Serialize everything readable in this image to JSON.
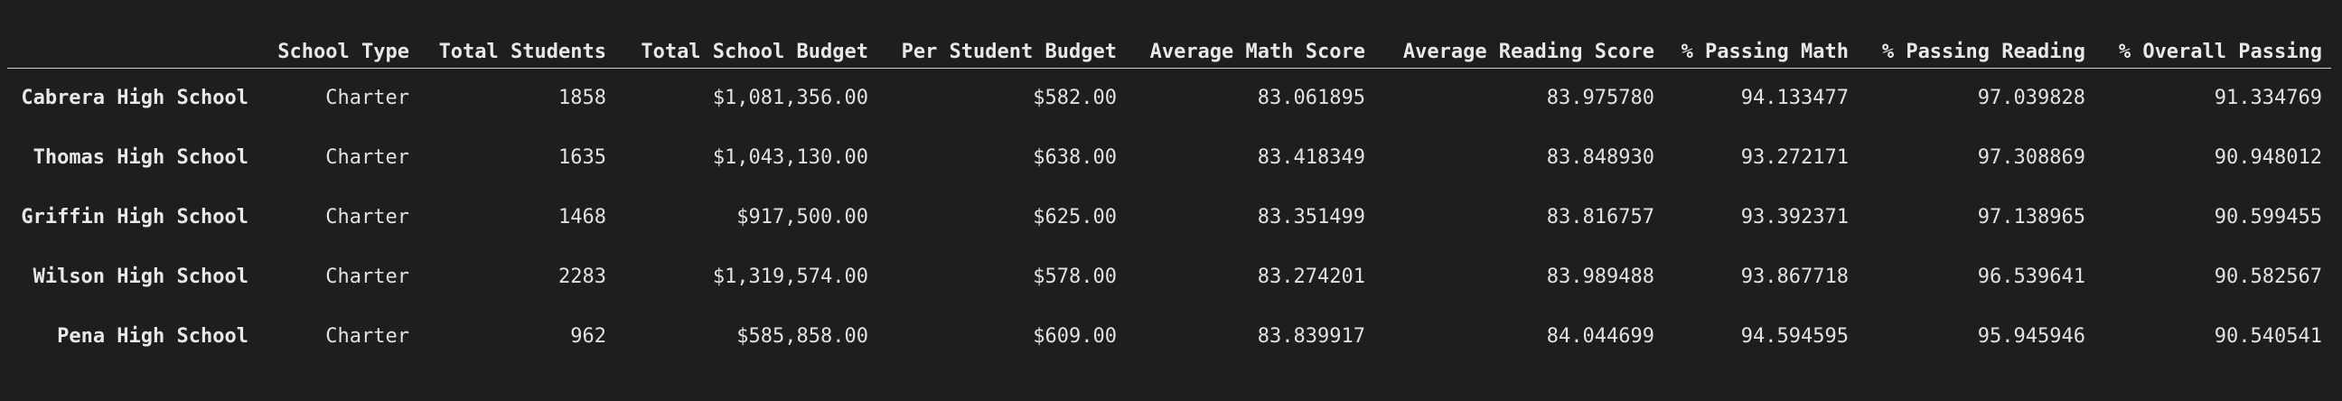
{
  "table": {
    "columns": [
      "",
      "School Type",
      "Total Students",
      "Total School Budget",
      "Per Student Budget",
      "Average Math Score",
      "Average Reading Score",
      "% Passing Math",
      "% Passing Reading",
      "% Overall Passing"
    ],
    "rows": [
      {
        "index": "Cabrera High School",
        "cells": [
          "Charter",
          "1858",
          "$1,081,356.00",
          "$582.00",
          "83.061895",
          "83.975780",
          "94.133477",
          "97.039828",
          "91.334769"
        ]
      },
      {
        "index": "Thomas High School",
        "cells": [
          "Charter",
          "1635",
          "$1,043,130.00",
          "$638.00",
          "83.418349",
          "83.848930",
          "93.272171",
          "97.308869",
          "90.948012"
        ]
      },
      {
        "index": "Griffin High School",
        "cells": [
          "Charter",
          "1468",
          "$917,500.00",
          "$625.00",
          "83.351499",
          "83.816757",
          "93.392371",
          "97.138965",
          "90.599455"
        ]
      },
      {
        "index": "Wilson High School",
        "cells": [
          "Charter",
          "2283",
          "$1,319,574.00",
          "$578.00",
          "83.274201",
          "83.989488",
          "93.867718",
          "96.539641",
          "90.582567"
        ]
      },
      {
        "index": "Pena High School",
        "cells": [
          "Charter",
          "962",
          "$585,858.00",
          "$609.00",
          "83.839917",
          "84.044699",
          "94.594595",
          "95.945946",
          "90.540541"
        ]
      }
    ]
  }
}
